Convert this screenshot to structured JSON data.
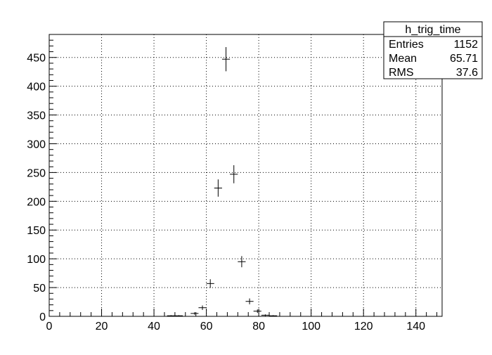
{
  "chart_data": {
    "type": "scatter",
    "histogram_name": "h_trig_time",
    "stats": [
      {
        "label": "Entries",
        "value": "1152"
      },
      {
        "label": "Mean",
        "value": "65.71"
      },
      {
        "label": "RMS",
        "value": "37.6"
      }
    ],
    "xlim": [
      0,
      150
    ],
    "ylim": [
      0,
      490
    ],
    "x_ticks": [
      0,
      20,
      40,
      60,
      80,
      100,
      120,
      140
    ],
    "y_ticks": [
      0,
      50,
      100,
      150,
      200,
      250,
      300,
      350,
      400,
      450
    ],
    "grid": true,
    "legend": "top-right",
    "bin_width": 3,
    "points": [
      {
        "x": 46.5,
        "y": 1,
        "err": 1
      },
      {
        "x": 49.5,
        "y": 1,
        "err": 1
      },
      {
        "x": 55.5,
        "y": 5,
        "err": 2.2
      },
      {
        "x": 58.5,
        "y": 15,
        "err": 3.9
      },
      {
        "x": 61.5,
        "y": 57,
        "err": 7.5
      },
      {
        "x": 64.5,
        "y": 223,
        "err": 15
      },
      {
        "x": 67.5,
        "y": 447,
        "err": 21
      },
      {
        "x": 70.5,
        "y": 247,
        "err": 15.7
      },
      {
        "x": 73.5,
        "y": 95,
        "err": 9.7
      },
      {
        "x": 76.5,
        "y": 26,
        "err": 5.1
      },
      {
        "x": 79.5,
        "y": 9,
        "err": 3
      },
      {
        "x": 82.5,
        "y": 2,
        "err": 1.4
      },
      {
        "x": 85.5,
        "y": 1,
        "err": 1
      }
    ],
    "colors": {
      "marker": "#000000",
      "grid": "#000000",
      "frame": "#000000"
    }
  }
}
